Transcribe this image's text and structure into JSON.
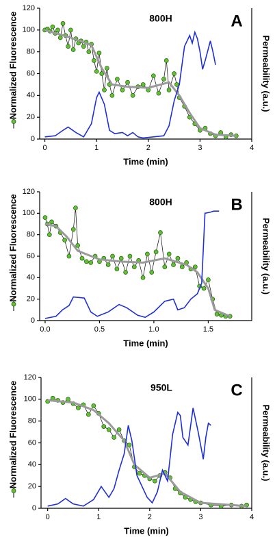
{
  "chart_data": [
    {
      "type": "line",
      "title": "800H",
      "panel_label": "A",
      "xlabel": "Time (min)",
      "ylabel": "Normalized Fluorescence",
      "y2label": "Permeability (a.u.)",
      "xlim": [
        -0.1,
        4
      ],
      "xticks": [
        0,
        1,
        2,
        3,
        4
      ],
      "ylim": [
        0,
        120
      ],
      "yticks": [
        0,
        20,
        40,
        60,
        80,
        100,
        120
      ],
      "series": [
        {
          "color": "#5fc234",
          "marker": true,
          "x": [
            0,
            0.05,
            0.1,
            0.15,
            0.2,
            0.25,
            0.3,
            0.35,
            0.4,
            0.45,
            0.5,
            0.55,
            0.6,
            0.65,
            0.7,
            0.75,
            0.8,
            0.85,
            0.9,
            0.95,
            1.0,
            1.05,
            1.1,
            1.15,
            1.2,
            1.25,
            1.3,
            1.4,
            1.5,
            1.6,
            1.7,
            1.8,
            1.9,
            2.0,
            2.1,
            2.2,
            2.3,
            2.35,
            2.4,
            2.5,
            2.55,
            2.6,
            2.7,
            2.8,
            2.9,
            3.0,
            3.1,
            3.2,
            3.3,
            3.4,
            3.5,
            3.6,
            3.7
          ],
          "values": [
            100,
            101,
            99,
            103,
            97,
            100,
            93,
            106,
            95,
            85,
            100,
            82,
            92,
            88,
            90,
            85,
            89,
            80,
            87,
            72,
            62,
            79,
            60,
            45,
            65,
            50,
            40,
            55,
            45,
            52,
            40,
            48,
            50,
            45,
            58,
            42,
            55,
            72,
            45,
            60,
            50,
            38,
            30,
            20,
            14,
            8,
            10,
            5,
            3,
            6,
            2,
            4,
            3
          ]
        },
        {
          "color": "#9a9a9a",
          "x": [
            0,
            0.5,
            0.9,
            1.1,
            1.3,
            1.6,
            2.0,
            2.4,
            2.6,
            2.8,
            3.0,
            3.3,
            3.7
          ],
          "values": [
            100,
            93,
            86,
            65,
            50,
            48,
            47,
            52,
            40,
            24,
            10,
            4,
            3
          ]
        },
        {
          "color": "#1f2fd6",
          "x": [
            0,
            0.2,
            0.35,
            0.45,
            0.6,
            0.75,
            0.9,
            1.0,
            1.05,
            1.15,
            1.25,
            1.35,
            1.5,
            1.6,
            1.7,
            1.8,
            1.9,
            2.1,
            2.3,
            2.4,
            2.5,
            2.6,
            2.7,
            2.8,
            2.85,
            2.9,
            2.95,
            3.0,
            3.05,
            3.1,
            3.2,
            3.25,
            3.3
          ],
          "values": [
            2,
            3,
            8,
            11,
            6,
            2,
            14,
            38,
            43,
            32,
            8,
            5,
            6,
            3,
            6,
            2,
            1,
            2,
            3,
            12,
            35,
            50,
            85,
            95,
            88,
            98,
            92,
            80,
            64,
            72,
            90,
            80,
            68
          ]
        }
      ]
    },
    {
      "type": "line",
      "title": "800H",
      "panel_label": "B",
      "xlabel": "Time (min)",
      "ylabel": "Normalized Fluorescence",
      "y2label": "Permeability (a.u.)",
      "xlim": [
        -0.05,
        1.9
      ],
      "xticks": [
        {
          "value": 0,
          "label": "0.0"
        },
        0.5,
        {
          "value": 1,
          "label": "1.0"
        },
        1.5
      ],
      "ylim": [
        0,
        120
      ],
      "yticks": [
        0,
        20,
        40,
        60,
        80,
        100,
        120
      ],
      "series": [
        {
          "color": "#5fc234",
          "marker": true,
          "x": [
            0,
            0.02,
            0.04,
            0.06,
            0.1,
            0.14,
            0.18,
            0.22,
            0.26,
            0.28,
            0.3,
            0.34,
            0.38,
            0.42,
            0.46,
            0.5,
            0.54,
            0.58,
            0.62,
            0.66,
            0.7,
            0.74,
            0.78,
            0.82,
            0.86,
            0.9,
            0.94,
            0.98,
            1.02,
            1.06,
            1.1,
            1.14,
            1.18,
            1.22,
            1.26,
            1.3,
            1.34,
            1.38,
            1.42,
            1.46,
            1.5,
            1.54,
            1.58,
            1.62,
            1.66,
            1.7
          ],
          "values": [
            96,
            90,
            80,
            92,
            88,
            82,
            75,
            60,
            85,
            105,
            70,
            58,
            55,
            54,
            60,
            55,
            58,
            52,
            60,
            48,
            58,
            45,
            60,
            50,
            56,
            40,
            62,
            45,
            64,
            82,
            50,
            62,
            52,
            58,
            50,
            54,
            48,
            50,
            32,
            30,
            38,
            20,
            6,
            5,
            4,
            4
          ]
        },
        {
          "color": "#9a9a9a",
          "x": [
            0,
            0.1,
            0.2,
            0.3,
            0.5,
            0.7,
            0.9,
            1.1,
            1.3,
            1.4,
            1.5,
            1.56,
            1.7
          ],
          "values": [
            90,
            88,
            78,
            65,
            57,
            55,
            54,
            58,
            52,
            45,
            30,
            10,
            4
          ]
        },
        {
          "color": "#1f2fd6",
          "x": [
            0,
            0.1,
            0.16,
            0.22,
            0.26,
            0.36,
            0.42,
            0.48,
            0.58,
            0.68,
            0.75,
            0.85,
            0.92,
            1.0,
            1.1,
            1.18,
            1.22,
            1.28,
            1.34,
            1.4,
            1.44,
            1.47,
            1.52,
            1.55,
            1.6
          ],
          "values": [
            2,
            4,
            10,
            14,
            22,
            21,
            8,
            4,
            8,
            15,
            12,
            5,
            3,
            8,
            18,
            20,
            10,
            12,
            20,
            25,
            35,
            100,
            101,
            102,
            102
          ]
        }
      ]
    },
    {
      "type": "line",
      "title": "950L",
      "panel_label": "C",
      "xlabel": "Time (min)",
      "ylabel": "Normalized Fluorescence",
      "y2label": "Permeability (a.u.)",
      "xlim": [
        -0.13,
        4
      ],
      "xticks": [
        0,
        1,
        2,
        3,
        4
      ],
      "ylim": [
        0,
        120
      ],
      "yticks": [
        0,
        20,
        40,
        60,
        80,
        100,
        120
      ],
      "series": [
        {
          "color": "#5fc234",
          "marker": true,
          "x": [
            0,
            0.1,
            0.2,
            0.3,
            0.4,
            0.5,
            0.6,
            0.7,
            0.8,
            0.9,
            1.0,
            1.1,
            1.2,
            1.3,
            1.4,
            1.5,
            1.6,
            1.7,
            1.8,
            1.9,
            2.0,
            2.1,
            2.2,
            2.3,
            2.4,
            2.5,
            2.6,
            2.7,
            2.8,
            2.9,
            3.0,
            3.2,
            3.4,
            3.6,
            3.8,
            3.9
          ],
          "values": [
            98,
            101,
            99,
            97,
            100,
            96,
            92,
            95,
            86,
            94,
            87,
            75,
            72,
            65,
            72,
            62,
            58,
            38,
            32,
            30,
            27,
            25,
            30,
            33,
            28,
            18,
            14,
            10,
            8,
            6,
            5,
            3,
            2,
            3,
            2,
            3
          ]
        },
        {
          "color": "#9a9a9a",
          "x": [
            0,
            0.5,
            0.9,
            1.2,
            1.5,
            1.7,
            2.0,
            2.3,
            2.6,
            3.0,
            3.9
          ],
          "values": [
            99,
            97,
            90,
            78,
            62,
            40,
            28,
            32,
            15,
            5,
            2
          ]
        },
        {
          "color": "#1f2fd6",
          "x": [
            0,
            0.2,
            0.35,
            0.5,
            0.7,
            0.9,
            1.05,
            1.2,
            1.3,
            1.4,
            1.5,
            1.58,
            1.65,
            1.75,
            1.85,
            1.95,
            2.05,
            2.15,
            2.25,
            2.35,
            2.45,
            2.55,
            2.6,
            2.65,
            2.75,
            2.85,
            2.95,
            3.05,
            3.1,
            3.15,
            3.2
          ],
          "values": [
            2,
            4,
            9,
            4,
            2,
            8,
            20,
            10,
            18,
            35,
            50,
            76,
            62,
            30,
            20,
            10,
            5,
            15,
            35,
            25,
            68,
            88,
            85,
            65,
            58,
            92,
            70,
            45,
            65,
            78,
            76
          ]
        }
      ]
    }
  ]
}
